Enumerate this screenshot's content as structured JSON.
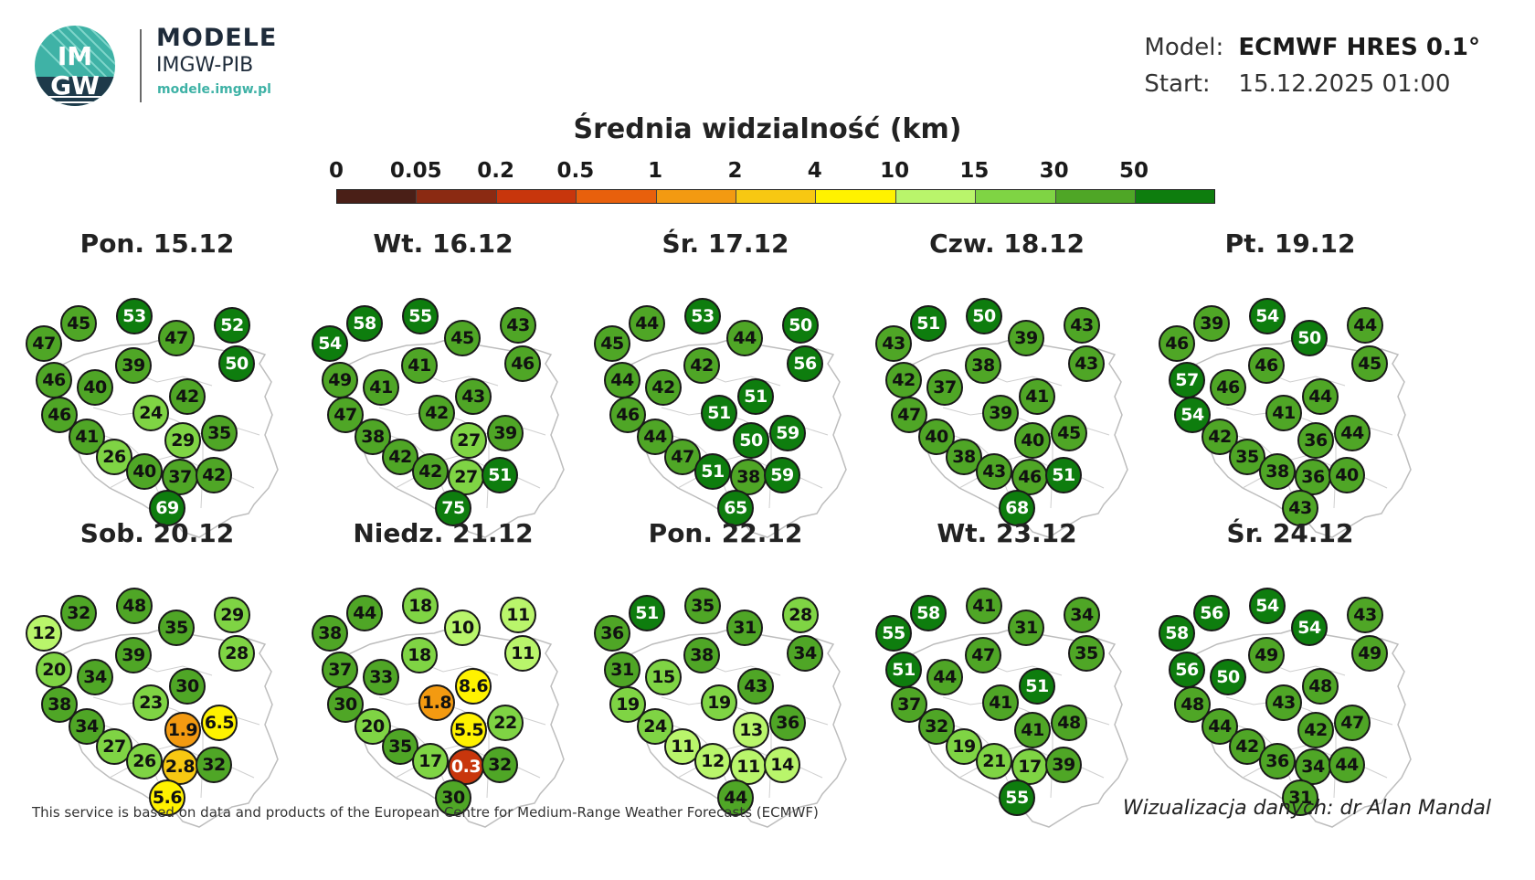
{
  "logo": {
    "badge_top": "IM",
    "badge_bottom": "GW",
    "title": "MODELE",
    "subtitle": "IMGW-PIB",
    "url": "modele.imgw.pl"
  },
  "meta": {
    "model_label": "Model:",
    "model_value": "ECMWF HRES 0.1°",
    "start_label": "Start:",
    "start_value": "15.12.2025 01:00"
  },
  "legend": {
    "title": "Średnia widzialność (km)",
    "ticks": [
      "0",
      "0.05",
      "0.2",
      "0.5",
      "1",
      "2",
      "4",
      "10",
      "15",
      "30",
      "50"
    ],
    "colors": [
      "#4a1f17",
      "#8b2a12",
      "#c8360c",
      "#e8600c",
      "#f39a11",
      "#f7c812",
      "#fff200",
      "#b9f56b",
      "#7fd444",
      "#4fa626",
      "#0e7d0e"
    ]
  },
  "days": [
    {
      "title": "Pon. 15.12",
      "values": [
        "47",
        "45",
        "53",
        "47",
        "52",
        "46",
        "40",
        "39",
        "50",
        "46",
        "24",
        "42",
        "41",
        "29",
        "35",
        "26",
        "40",
        "37",
        "42",
        "69"
      ]
    },
    {
      "title": "Wt. 16.12",
      "values": [
        "54",
        "58",
        "55",
        "45",
        "43",
        "49",
        "41",
        "41",
        "46",
        "47",
        "42",
        "43",
        "38",
        "27",
        "39",
        "42",
        "42",
        "27",
        "51",
        "75"
      ]
    },
    {
      "title": "Śr. 17.12",
      "values": [
        "45",
        "44",
        "53",
        "44",
        "50",
        "44",
        "42",
        "42",
        "56",
        "46",
        "51",
        "51",
        "44",
        "50",
        "59",
        "47",
        "51",
        "38",
        "59",
        "65"
      ]
    },
    {
      "title": "Czw. 18.12",
      "values": [
        "43",
        "51",
        "50",
        "39",
        "43",
        "42",
        "37",
        "38",
        "43",
        "47",
        "39",
        "41",
        "40",
        "40",
        "45",
        "38",
        "43",
        "46",
        "51",
        "68"
      ]
    },
    {
      "title": "Pt. 19.12",
      "values": [
        "46",
        "39",
        "54",
        "50",
        "44",
        "57",
        "46",
        "46",
        "45",
        "54",
        "41",
        "44",
        "42",
        "36",
        "44",
        "35",
        "38",
        "36",
        "40",
        "43"
      ]
    },
    {
      "title": "Sob. 20.12",
      "values": [
        "12",
        "32",
        "48",
        "35",
        "29",
        "20",
        "34",
        "39",
        "28",
        "38",
        "23",
        "30",
        "34",
        "1.9",
        "6.5",
        "27",
        "26",
        "2.8",
        "32",
        "5.6"
      ]
    },
    {
      "title": "Niedz. 21.12",
      "values": [
        "38",
        "44",
        "18",
        "10",
        "11",
        "37",
        "33",
        "18",
        "11",
        "30",
        "1.8",
        "8.6",
        "20",
        "5.5",
        "22",
        "35",
        "17",
        "0.3",
        "32",
        "30"
      ]
    },
    {
      "title": "Pon. 22.12",
      "values": [
        "36",
        "51",
        "35",
        "31",
        "28",
        "31",
        "15",
        "38",
        "34",
        "19",
        "19",
        "43",
        "24",
        "13",
        "36",
        "11",
        "12",
        "11",
        "14",
        "44"
      ]
    },
    {
      "title": "Wt. 23.12",
      "values": [
        "55",
        "58",
        "41",
        "31",
        "34",
        "51",
        "44",
        "47",
        "35",
        "37",
        "41",
        "51",
        "32",
        "41",
        "48",
        "19",
        "21",
        "17",
        "39",
        "55"
      ]
    },
    {
      "title": "Śr. 24.12",
      "values": [
        "58",
        "56",
        "54",
        "54",
        "43",
        "56",
        "50",
        "49",
        "49",
        "48",
        "43",
        "48",
        "44",
        "42",
        "47",
        "42",
        "36",
        "34",
        "44",
        "31"
      ]
    }
  ],
  "footer": {
    "left": "This service is based on data and products of the European Centre for Medium-Range Weather Forecasts (ECMWF)",
    "right": "Wizualizacja danych: dr Alan Mandal"
  }
}
